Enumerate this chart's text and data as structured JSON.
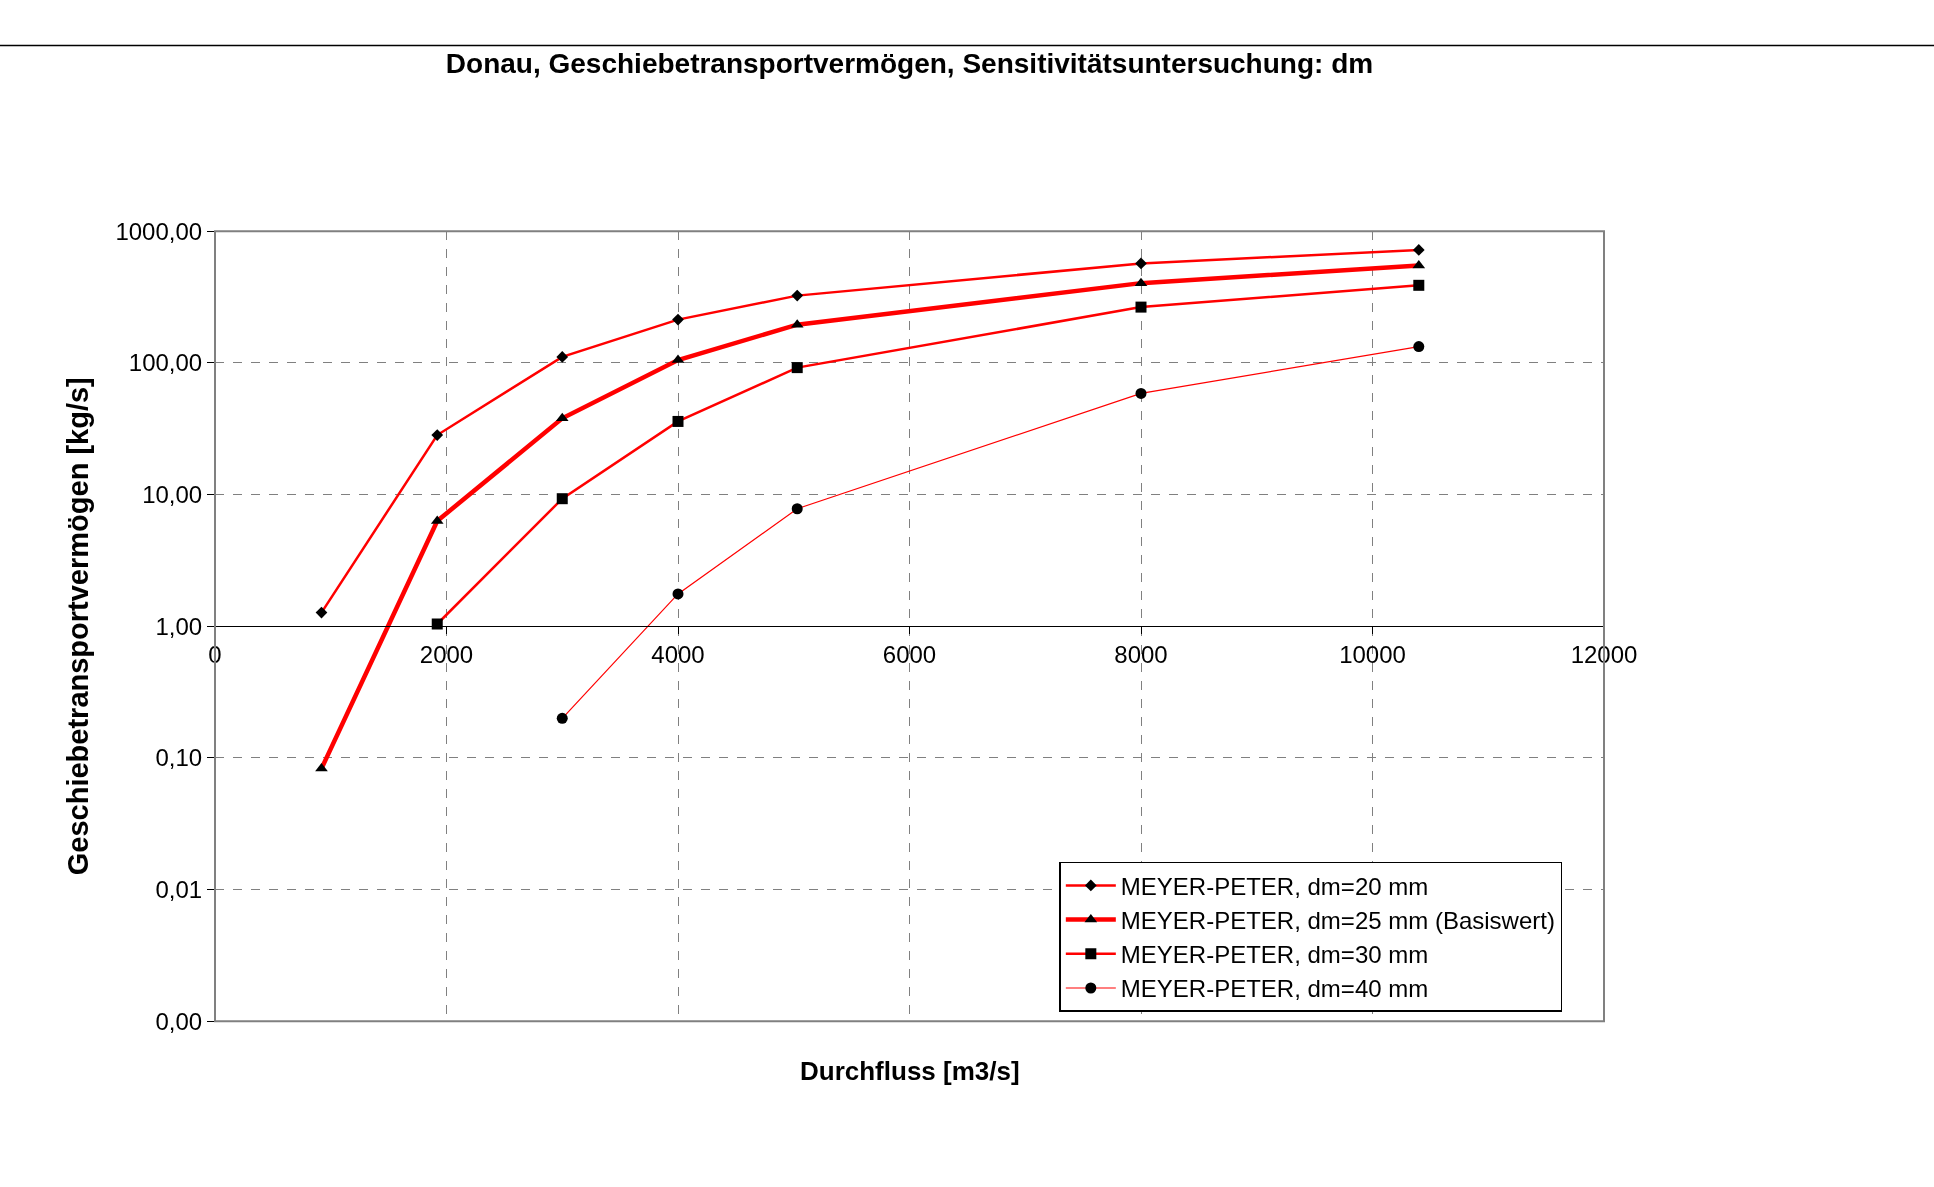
{
  "chart_data": {
    "type": "line",
    "title": "Donau, Geschiebetransportvermögen, Sensitivitätsuntersuchung: dm",
    "xlabel": "Durchfluss [m3/s]",
    "ylabel": "Geschiebetransportvermögen [kg/s]",
    "x": [
      920,
      1920,
      3000,
      4000,
      5030,
      8000,
      10400
    ],
    "series": [
      {
        "name": "MEYER-PETER, dm=20 mm",
        "color": "#ff0000",
        "marker": "diamond",
        "values": [
          1.27,
          28.3,
          111,
          213,
          324,
          569,
          720
        ]
      },
      {
        "name": "MEYER-PETER, dm=25 mm (Basiswert)",
        "color": "#ff0000",
        "marker": "triangle",
        "values": [
          0.083,
          6.3,
          37.9,
          105,
          195,
          403,
          548
        ]
      },
      {
        "name": "MEYER-PETER, dm=30 mm",
        "color": "#ff0000",
        "marker": "square",
        "values": [
          null,
          1.04,
          9.3,
          35.9,
          92,
          265,
          388
        ]
      },
      {
        "name": "MEYER-PETER, dm=40 mm",
        "color": "#ff0000",
        "marker": "circle",
        "values": [
          null,
          null,
          0.2,
          1.76,
          7.8,
          58.6,
          133
        ]
      }
    ],
    "log": "y",
    "xlim": [
      0,
      12000
    ],
    "xticks": [
      0,
      2000,
      4000,
      6000,
      8000,
      10000,
      12000
    ],
    "ylim": [
      0.001,
      1000
    ],
    "yticks": [
      {
        "value": 0.001,
        "label": "0,00"
      },
      {
        "value": 0.01,
        "label": "0,01"
      },
      {
        "value": 0.1,
        "label": "0,10"
      },
      {
        "value": 1,
        "label": "1,00"
      },
      {
        "value": 10,
        "label": "10,00"
      },
      {
        "value": 100,
        "label": "100,00"
      },
      {
        "value": 1000,
        "label": "1000,00"
      }
    ],
    "grid": true,
    "legend": "bottom right",
    "line_style": "solid"
  }
}
